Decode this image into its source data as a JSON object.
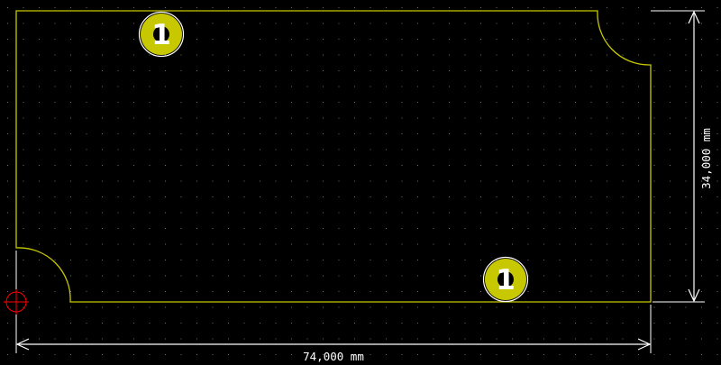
{
  "canvas": {
    "background_color": "#000000",
    "grid_dot_color": "#6f6f6f"
  },
  "board_outline": {
    "color": "#c8c800",
    "shape": "rectangle with rounded notch cutouts at top-right and bottom-left corners"
  },
  "pads": [
    {
      "name": "pad-top-left",
      "label": "1",
      "fill_color": "#c8c800",
      "ring_color": "#ffffff",
      "text_color": "#ffffff"
    },
    {
      "name": "pad-bottom-right",
      "label": "1",
      "fill_color": "#c8c800",
      "ring_color": "#ffffff",
      "text_color": "#ffffff"
    }
  ],
  "dimensions": {
    "color": "#ffffff",
    "horizontal": {
      "label": "74,000 mm"
    },
    "vertical": {
      "label": "34,000 mm"
    }
  },
  "origin_marker": {
    "icon": "origin-crosshair-icon",
    "color": "#ff0000"
  }
}
